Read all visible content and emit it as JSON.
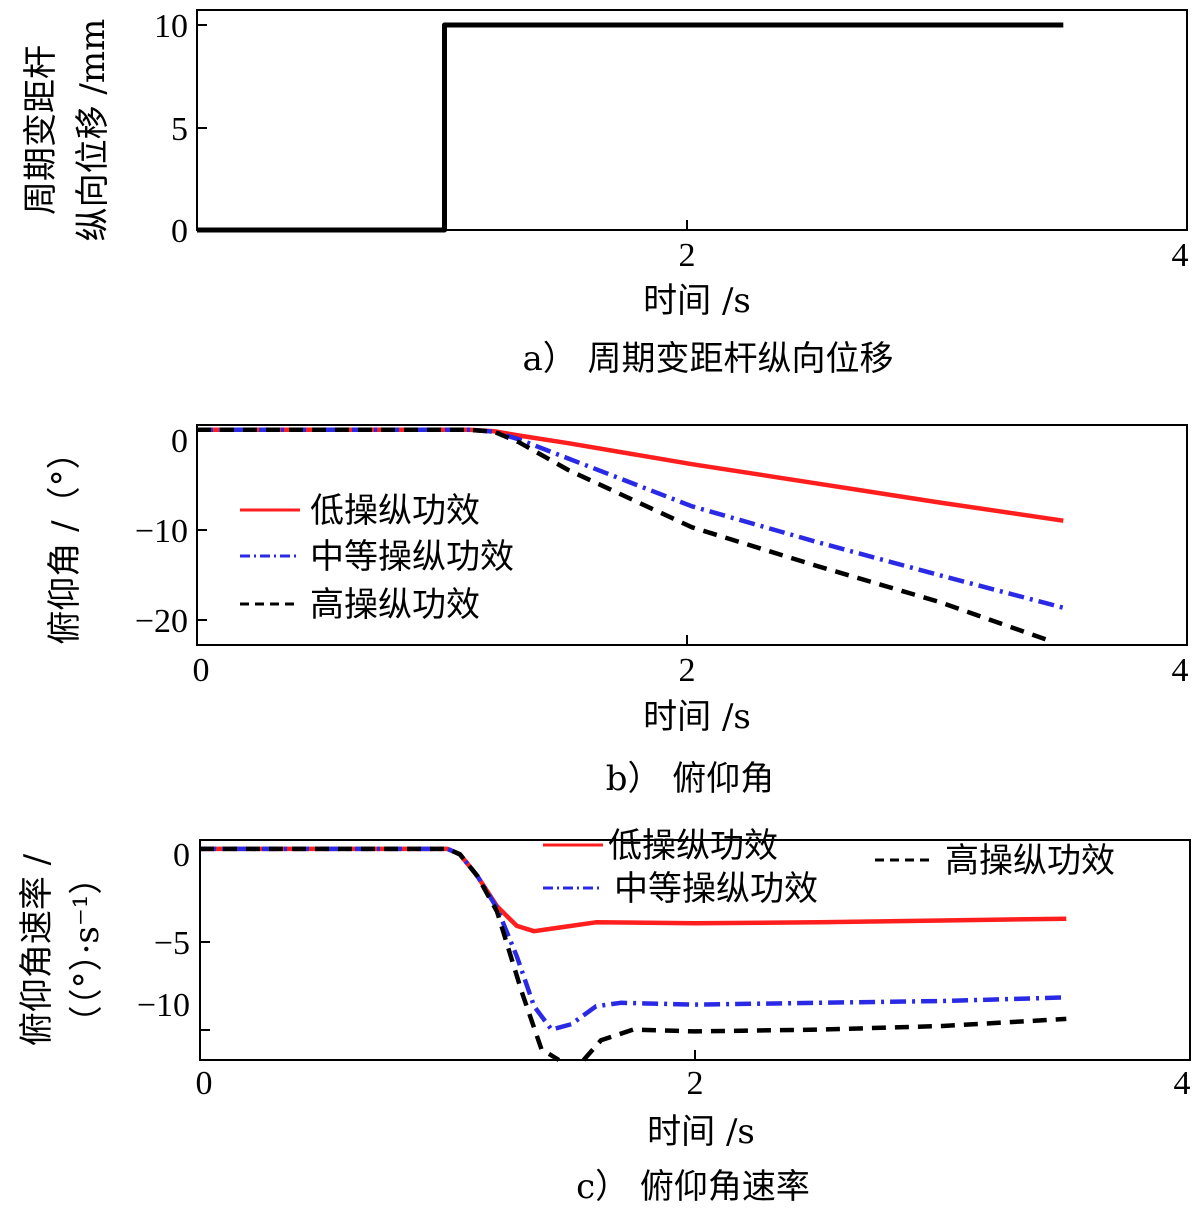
{
  "charts": [
    {
      "type": "line",
      "caption": "a） 周期变距杆纵向位移",
      "xlabel": "时间 /s",
      "ylabel_lines": [
        "周期变距杆",
        "纵向位移 /mm"
      ],
      "xlim": [
        0,
        4
      ],
      "ylim": [
        0,
        10
      ],
      "xticks": [
        2,
        4
      ],
      "yticks": [
        0,
        5,
        10
      ],
      "series": [
        {
          "color": "#000000",
          "dash": "solid",
          "points": [
            [
              0,
              0
            ],
            [
              1,
              0
            ],
            [
              1,
              10
            ],
            [
              3.5,
              10
            ]
          ]
        }
      ],
      "legend": []
    },
    {
      "type": "line",
      "caption": "b） 俯仰角",
      "xlabel": "时间 /s",
      "ylabel_lines": [
        "俯仰角 /（°）"
      ],
      "xlim": [
        0,
        4
      ],
      "ylim": [
        -22.5,
        0.5
      ],
      "xticks": [
        0,
        2,
        4
      ],
      "yticks": [
        0,
        -10,
        -20
      ],
      "series": [
        {
          "name": "低操纵功效",
          "color": "#ff1e1e",
          "dash": "solid",
          "points": [
            [
              0,
              0
            ],
            [
              1.1,
              0
            ],
            [
              1.2,
              -0.15
            ],
            [
              1.3,
              -0.6
            ],
            [
              1.5,
              -1.4
            ],
            [
              2.0,
              -3.6
            ],
            [
              2.5,
              -5.6
            ],
            [
              3.0,
              -7.6
            ],
            [
              3.5,
              -9.5
            ]
          ]
        },
        {
          "name": "中等操纵功效",
          "color": "#2a2ae6",
          "dash": "dashdot",
          "points": [
            [
              0,
              0
            ],
            [
              1.1,
              0
            ],
            [
              1.2,
              -0.2
            ],
            [
              1.3,
              -1.0
            ],
            [
              1.5,
              -3.0
            ],
            [
              2.0,
              -8.0
            ],
            [
              2.5,
              -11.7
            ],
            [
              3.0,
              -15.2
            ],
            [
              3.5,
              -18.6
            ]
          ]
        },
        {
          "name": "高操纵功效",
          "color": "#000000",
          "dash": "dashed",
          "points": [
            [
              0,
              0
            ],
            [
              1.1,
              0
            ],
            [
              1.2,
              -0.2
            ],
            [
              1.3,
              -1.3
            ],
            [
              1.5,
              -4.2
            ],
            [
              2.0,
              -10.2
            ],
            [
              2.5,
              -14.2
            ],
            [
              3.0,
              -18.0
            ],
            [
              3.45,
              -22.1
            ]
          ]
        }
      ],
      "legend": [
        "低操纵功效",
        "中等操纵功效",
        "高操纵功效"
      ]
    },
    {
      "type": "line",
      "caption": "c） 俯仰角速率",
      "xlabel": "时间 /s",
      "ylabel_lines": [
        "俯仰角速率 /",
        "（（°）·s⁻¹）"
      ],
      "xlim": [
        0,
        4
      ],
      "ylim": [
        -11.8,
        0.5
      ],
      "xticks": [
        0,
        2,
        4
      ],
      "yticks": [
        0,
        -5,
        -10
      ],
      "series": [
        {
          "name": "低操纵功效",
          "color": "#ff1e1e",
          "dash": "solid",
          "points": [
            [
              0,
              0
            ],
            [
              1.0,
              0
            ],
            [
              1.05,
              -0.3
            ],
            [
              1.12,
              -1.5
            ],
            [
              1.2,
              -3.2
            ],
            [
              1.28,
              -4.3
            ],
            [
              1.35,
              -4.6
            ],
            [
              1.45,
              -4.4
            ],
            [
              1.6,
              -4.1
            ],
            [
              2.0,
              -4.15
            ],
            [
              2.5,
              -4.1
            ],
            [
              3.0,
              -4.0
            ],
            [
              3.5,
              -3.9
            ]
          ]
        },
        {
          "name": "中等操纵功效",
          "color": "#2a2ae6",
          "dash": "dashdot",
          "points": [
            [
              0,
              0
            ],
            [
              1.0,
              0
            ],
            [
              1.05,
              -0.3
            ],
            [
              1.12,
              -1.5
            ],
            [
              1.2,
              -3.3
            ],
            [
              1.28,
              -6.0
            ],
            [
              1.35,
              -8.8
            ],
            [
              1.42,
              -10.1
            ],
            [
              1.5,
              -9.8
            ],
            [
              1.6,
              -8.8
            ],
            [
              1.7,
              -8.6
            ],
            [
              2.0,
              -8.7
            ],
            [
              2.5,
              -8.6
            ],
            [
              3.0,
              -8.5
            ],
            [
              3.5,
              -8.3
            ]
          ]
        },
        {
          "name": "高操纵功效",
          "color": "#000000",
          "dash": "dashed",
          "points": [
            [
              0,
              0
            ],
            [
              1.0,
              0
            ],
            [
              1.05,
              -0.3
            ],
            [
              1.12,
              -1.5
            ],
            [
              1.2,
              -3.5
            ],
            [
              1.3,
              -8.0
            ],
            [
              1.38,
              -11.2
            ],
            [
              1.45,
              -11.8
            ]
          ],
          "points2": [
            [
              1.55,
              -11.8
            ],
            [
              1.62,
              -10.7
            ],
            [
              1.75,
              -10.1
            ],
            [
              2.0,
              -10.2
            ],
            [
              2.5,
              -10.1
            ],
            [
              3.0,
              -9.9
            ],
            [
              3.5,
              -9.5
            ]
          ]
        }
      ],
      "legend": [
        "低操纵功效",
        "中等操纵功效",
        "高操纵功效"
      ]
    }
  ]
}
